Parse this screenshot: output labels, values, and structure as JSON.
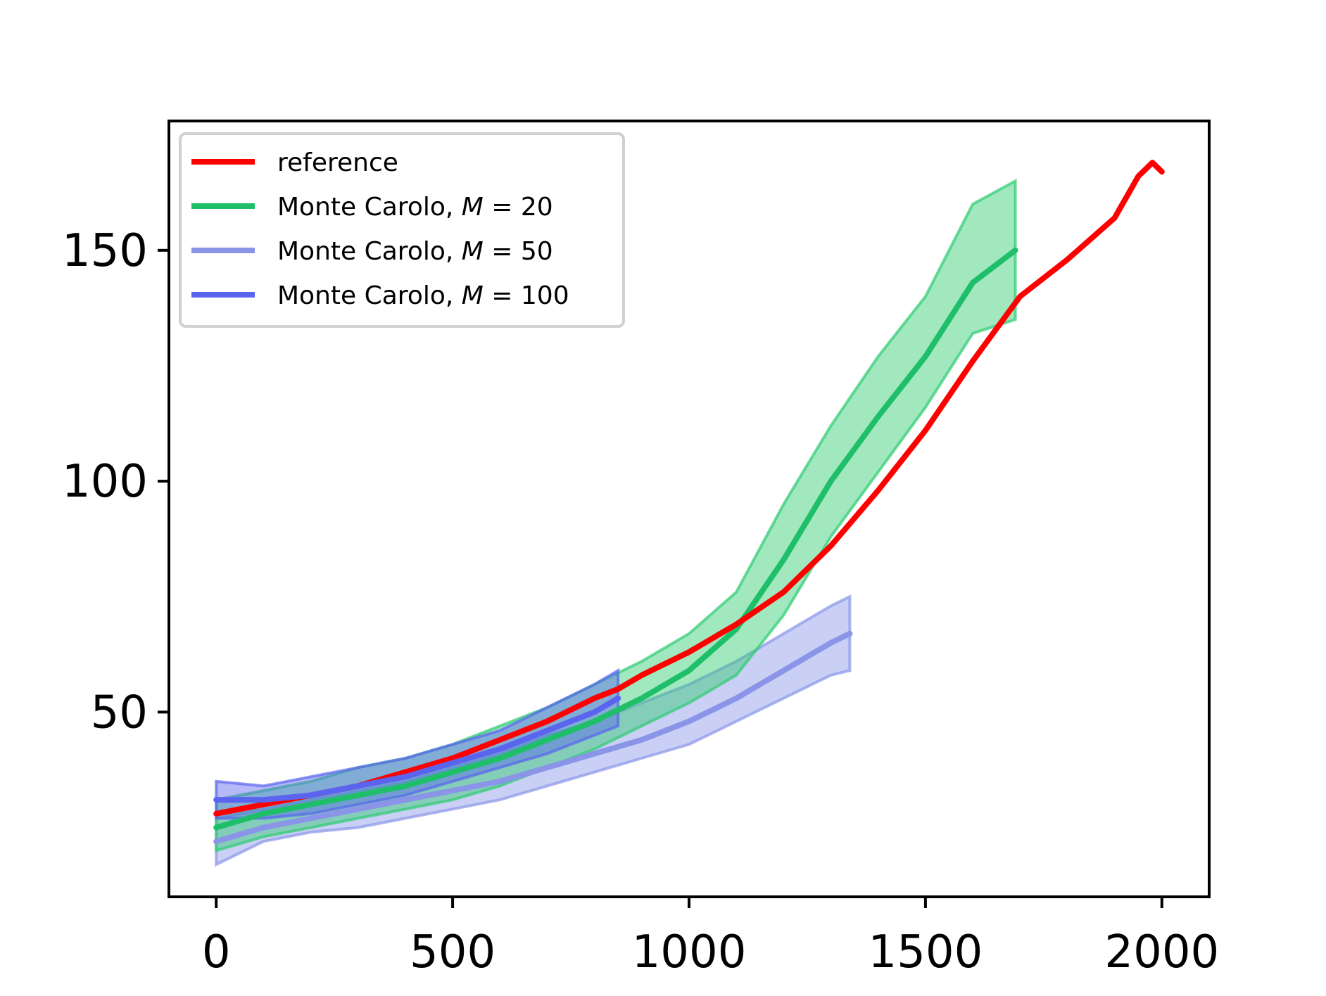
{
  "chart_data": {
    "type": "line",
    "title": "",
    "xlabel": "",
    "ylabel": "",
    "xlim": [
      -100,
      2100
    ],
    "ylim": [
      10,
      178
    ],
    "x_ticks": [
      0,
      500,
      1000,
      1500,
      2000
    ],
    "y_ticks": [
      50,
      100,
      150
    ],
    "x_tick_labels": [
      "0",
      "500",
      "1000",
      "1500",
      "2000"
    ],
    "y_tick_labels": [
      "50",
      "100",
      "150"
    ],
    "grid": false,
    "legend_position": "top-left",
    "series": [
      {
        "name": "reference",
        "color": "#ff0000",
        "x": [
          0,
          100,
          200,
          300,
          400,
          500,
          600,
          700,
          800,
          850,
          900,
          1000,
          1100,
          1200,
          1300,
          1400,
          1500,
          1600,
          1700,
          1800,
          1900,
          1950,
          1980,
          2000
        ],
        "y": [
          28,
          30,
          32,
          34,
          37,
          40,
          44,
          48,
          53,
          55,
          58,
          63,
          69,
          76,
          86,
          98,
          111,
          126,
          140,
          148,
          157,
          166,
          169,
          167
        ]
      },
      {
        "name": "Monte Carolo, M = 20",
        "color": "#1fbf6a",
        "band_color": "#2ecc71",
        "x": [
          0,
          100,
          200,
          300,
          400,
          500,
          600,
          700,
          800,
          900,
          1000,
          1100,
          1200,
          1300,
          1400,
          1500,
          1600,
          1690
        ],
        "y": [
          25,
          28,
          30,
          32,
          34,
          37,
          40,
          44,
          48,
          53,
          59,
          68,
          83,
          100,
          114,
          127,
          143,
          150
        ],
        "lower": [
          20,
          23,
          25,
          27,
          29,
          31,
          34,
          38,
          42,
          47,
          52,
          58,
          71,
          88,
          102,
          116,
          132,
          135
        ],
        "upper": [
          31,
          33,
          35,
          38,
          40,
          43,
          47,
          51,
          56,
          61,
          67,
          76,
          95,
          112,
          127,
          140,
          160,
          165
        ]
      },
      {
        "name": "Monte Carolo, M = 50",
        "color": "#8a95e8",
        "band_color": "#8a95e8",
        "x": [
          0,
          100,
          200,
          300,
          400,
          500,
          600,
          700,
          800,
          900,
          1000,
          1100,
          1200,
          1300,
          1340
        ],
        "y": [
          22,
          25,
          27,
          29,
          31,
          33,
          35,
          38,
          41,
          44,
          48,
          53,
          59,
          65,
          67
        ],
        "lower": [
          17,
          22,
          24,
          25,
          27,
          29,
          31,
          34,
          37,
          40,
          43,
          48,
          53,
          58,
          59
        ],
        "upper": [
          27,
          29,
          31,
          33,
          35,
          38,
          41,
          45,
          48,
          52,
          56,
          61,
          67,
          73,
          75
        ]
      },
      {
        "name": "Monte Carolo, M = 100",
        "color": "#5a64ef",
        "band_color": "#5a64ef",
        "x": [
          0,
          100,
          200,
          300,
          400,
          500,
          600,
          700,
          800,
          850
        ],
        "y": [
          31,
          31,
          32,
          34,
          36,
          39,
          42,
          46,
          50,
          53
        ],
        "lower": [
          27,
          27,
          28,
          30,
          32,
          35,
          38,
          41,
          45,
          47
        ],
        "upper": [
          35,
          34,
          36,
          38,
          40,
          43,
          46,
          51,
          56,
          59
        ]
      }
    ]
  }
}
